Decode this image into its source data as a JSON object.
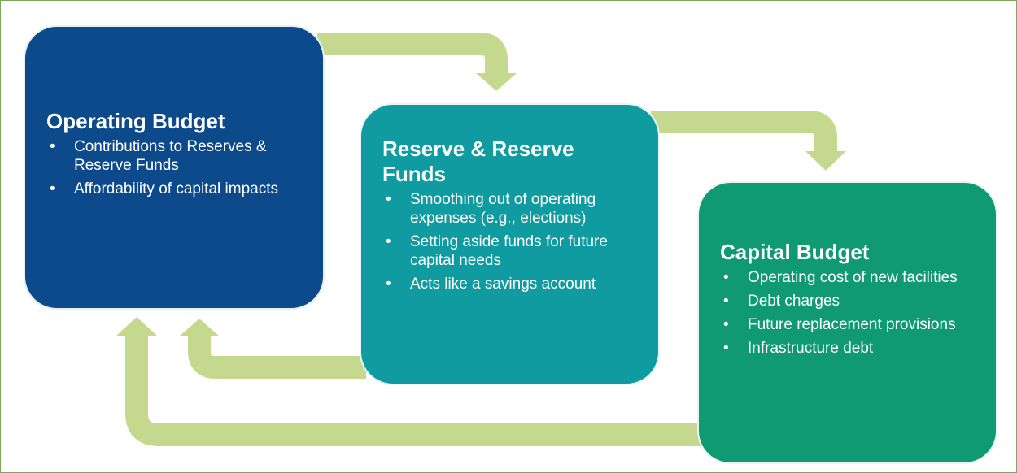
{
  "nodes": [
    {
      "title": "Operating Budget",
      "items": [
        "Contributions to Reserves & Reserve Funds",
        "Affordability of capital impacts"
      ]
    },
    {
      "title": "Reserve & Reserve Funds",
      "items": [
        "Smoothing out of operating expenses (e.g., elections)",
        "Setting aside funds for future capital needs",
        "Acts like a savings account"
      ]
    },
    {
      "title": "Capital Budget",
      "items": [
        "Operating cost of new facilities",
        "Debt charges",
        "Future replacement provisions",
        "Infrastructure debt"
      ]
    }
  ]
}
